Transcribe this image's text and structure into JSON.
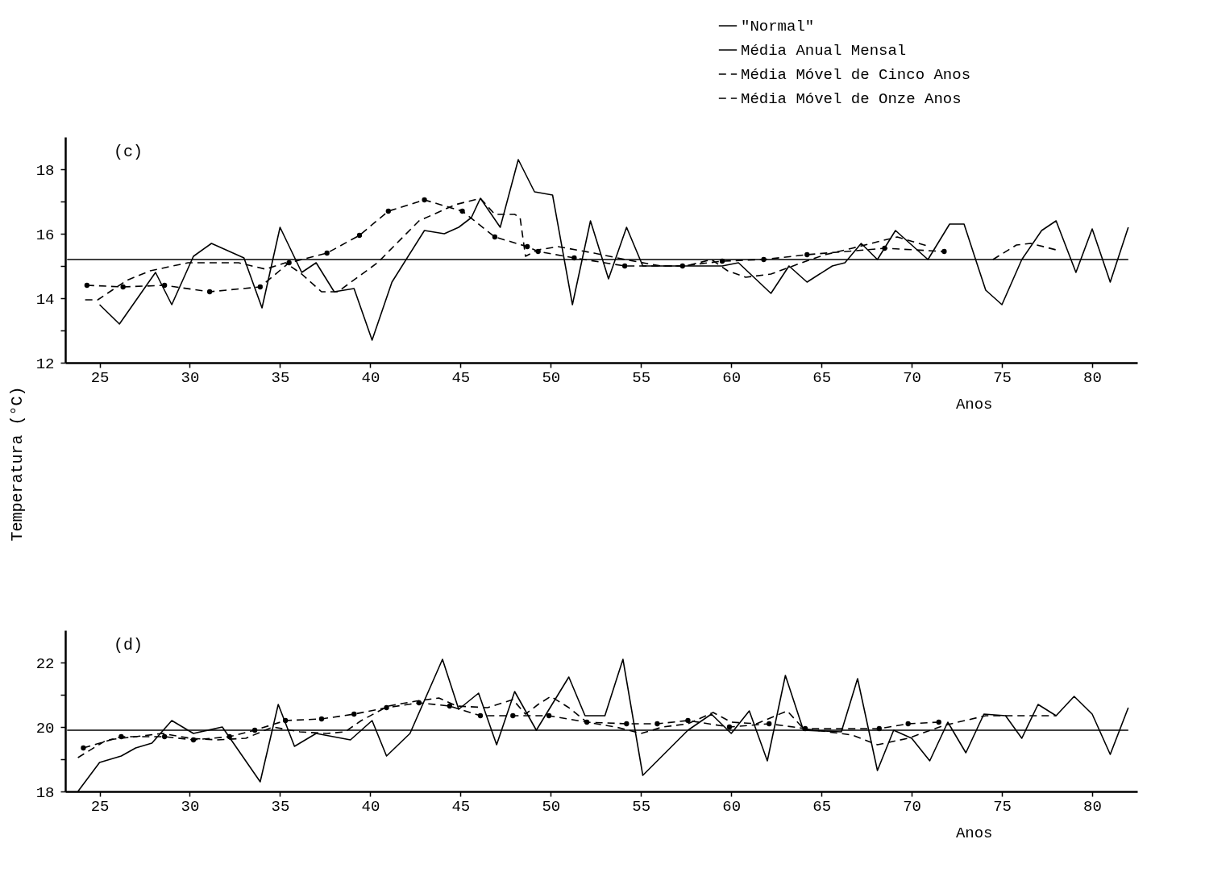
{
  "chart_data": [
    {
      "type": "line",
      "xlabel": "Anos",
      "ylabel": "Temperatura (°C)",
      "annotations": [
        "(c)"
      ],
      "xlim": [
        23.1,
        82.5
      ],
      "ylim": [
        12,
        19
      ],
      "xticks": [
        25,
        30,
        35,
        40,
        45,
        50,
        55,
        60,
        65,
        70,
        75,
        80
      ],
      "yticks": [
        {
          "value": 12,
          "label": "12"
        },
        {
          "value": 13,
          "label": null
        },
        {
          "value": 14,
          "label": "14"
        },
        {
          "value": 15,
          "label": null
        },
        {
          "value": 16,
          "label": "16"
        },
        {
          "value": 17,
          "label": null
        },
        {
          "value": 18,
          "label": "18"
        }
      ],
      "legend": "top right",
      "series": [
        {
          "name": "\"Normal\"",
          "color": "#000000",
          "line_style": "solid",
          "x": [
            23.2,
            82.0
          ],
          "values": [
            15.2,
            15.2
          ]
        },
        {
          "name": "Média Anual Mensal",
          "color": "#000000",
          "line_style": "solid",
          "x": [
            25.0,
            26.1,
            28.1,
            29.0,
            30.2,
            31.2,
            33.0,
            34.0,
            35.0,
            36.2,
            37.0,
            38.0,
            39.1,
            40.1,
            41.2,
            43.0,
            44.1,
            44.9,
            45.6,
            46.1,
            47.2,
            48.2,
            49.1,
            50.1,
            51.2,
            52.2,
            53.2,
            54.2,
            55.1,
            59.5,
            60.4,
            62.2,
            63.2,
            64.2,
            65.6,
            66.3,
            67.2,
            68.1,
            69.1,
            70.9,
            72.1,
            72.9,
            73.6,
            74.1,
            75.0,
            76.1,
            77.2,
            78.0,
            79.1,
            80.0,
            81.0,
            82.0
          ],
          "values": [
            13.8,
            13.2,
            14.8,
            13.8,
            15.3,
            15.7,
            15.25,
            13.7,
            16.2,
            14.8,
            15.1,
            14.2,
            14.3,
            12.7,
            14.5,
            16.1,
            16.0,
            16.2,
            16.5,
            17.1,
            16.2,
            18.3,
            17.3,
            17.2,
            13.8,
            16.4,
            14.6,
            16.2,
            15.0,
            15.0,
            15.1,
            14.15,
            15.0,
            14.5,
            15.0,
            15.1,
            15.7,
            15.2,
            16.1,
            15.2,
            16.3,
            16.3,
            15.1,
            14.25,
            13.8,
            15.2,
            16.1,
            16.4,
            14.8,
            16.15,
            14.5,
            16.2
          ]
        },
        {
          "name": "Média Móvel de Cinco Anos",
          "color": "#000000",
          "line_style": "dashed",
          "x": [
            24.2,
            24.9,
            26.5,
            27.8,
            29.9,
            32.7,
            34.2,
            35.3,
            36.2,
            37.3,
            38.2,
            40.4,
            42.7,
            44.7,
            46.1,
            46.9,
            48.0,
            48.3,
            48.6,
            49.3,
            50.4,
            52.4,
            54.1,
            56.1,
            57.5,
            58.9,
            59.8,
            60.8,
            62.2,
            63.9,
            65.2,
            66.7,
            68.1,
            69.2,
            71.0,
            73.0,
            74.5,
            75.8,
            76.6,
            78.0
          ],
          "values": [
            13.95,
            13.95,
            14.55,
            14.85,
            15.1,
            15.1,
            14.9,
            15.1,
            14.75,
            14.2,
            14.2,
            15.1,
            16.4,
            16.9,
            17.1,
            16.6,
            16.6,
            16.5,
            15.3,
            15.5,
            15.6,
            15.4,
            15.2,
            15.0,
            15.0,
            15.2,
            14.85,
            14.65,
            14.75,
            15.1,
            15.35,
            15.55,
            15.75,
            15.9,
            15.6,
            null,
            15.2,
            15.65,
            15.7,
            15.5
          ]
        },
        {
          "name": "Média Móvel de Onze Anos",
          "color": "#000000",
          "line_style": "dashed",
          "marker": "circle",
          "x": [
            24.3,
            26.3,
            28.6,
            31.1,
            33.9,
            35.5,
            37.6,
            39.4,
            41.0,
            43.0,
            45.1,
            46.9,
            48.7,
            49.3,
            51.3,
            54.1,
            57.3,
            59.5,
            61.8,
            64.2,
            68.5,
            71.8
          ],
          "values": [
            14.4,
            14.35,
            14.4,
            14.2,
            14.35,
            15.1,
            15.4,
            15.95,
            16.7,
            17.05,
            16.7,
            15.9,
            15.6,
            15.45,
            15.25,
            15.0,
            15.0,
            15.15,
            15.2,
            15.35,
            15.55,
            15.45
          ]
        }
      ]
    },
    {
      "type": "line",
      "xlabel": "Anos",
      "annotations": [
        "(d)"
      ],
      "xlim": [
        23.1,
        82.5
      ],
      "ylim": [
        18,
        23
      ],
      "xticks": [
        25,
        30,
        35,
        40,
        45,
        50,
        55,
        60,
        65,
        70,
        75,
        80
      ],
      "yticks": [
        {
          "value": 18,
          "label": "18"
        },
        {
          "value": 19,
          "label": null
        },
        {
          "value": 20,
          "label": "20"
        },
        {
          "value": 21,
          "label": null
        },
        {
          "value": 22,
          "label": "22"
        }
      ],
      "series": [
        {
          "color": "#000000",
          "line_style": "solid",
          "x": [
            23.2,
            82.0
          ],
          "values": [
            19.9,
            19.9
          ]
        },
        {
          "color": "#000000",
          "line_style": "solid",
          "x": [
            23.8,
            25.0,
            26.2,
            27.0,
            27.9,
            29.0,
            30.2,
            31.8,
            33.9,
            34.9,
            35.8,
            37.0,
            38.9,
            40.1,
            40.9,
            42.2,
            44.0,
            44.9,
            46.0,
            47.0,
            48.0,
            49.2,
            51.0,
            51.9,
            53.0,
            54.0,
            55.1,
            57.6,
            58.9,
            60.0,
            61.0,
            62.0,
            63.0,
            64.0,
            66.1,
            67.0,
            68.1,
            69.0,
            70.0,
            71.0,
            72.0,
            73.0,
            74.0,
            75.2,
            76.1,
            77.0,
            78.0,
            79.0,
            80.0,
            81.0,
            82.0
          ],
          "values": [
            18.0,
            18.9,
            19.1,
            19.35,
            19.5,
            20.2,
            19.8,
            20.0,
            18.3,
            20.7,
            19.4,
            19.8,
            19.6,
            20.2,
            19.1,
            19.8,
            22.1,
            20.55,
            21.05,
            19.45,
            21.1,
            19.9,
            21.55,
            20.35,
            20.35,
            22.1,
            18.5,
            19.9,
            20.4,
            19.8,
            20.5,
            18.95,
            21.6,
            19.9,
            19.85,
            21.5,
            18.65,
            19.9,
            19.65,
            18.95,
            20.15,
            19.2,
            20.4,
            20.35,
            19.65,
            20.7,
            20.35,
            20.95,
            20.4,
            19.15,
            20.6
          ]
        },
        {
          "color": "#000000",
          "line_style": "dashed",
          "x": [
            23.8,
            25.4,
            27.0,
            28.5,
            30.0,
            31.5,
            33.1,
            34.6,
            36.1,
            37.6,
            38.6,
            39.5,
            41.0,
            42.5,
            43.8,
            44.8,
            46.5,
            47.9,
            48.6,
            49.3,
            50.0,
            51.0,
            52.0,
            53.6,
            55.0,
            56.2,
            57.6,
            59.0,
            60.0,
            61.4,
            63.1,
            64.0,
            66.7,
            68.1,
            69.8,
            71.8,
            74.1,
            75.7,
            78.0
          ],
          "values": [
            19.05,
            19.6,
            19.7,
            19.8,
            19.65,
            19.6,
            19.65,
            20.0,
            19.85,
            19.8,
            19.85,
            20.2,
            20.65,
            20.8,
            20.9,
            20.65,
            20.6,
            20.85,
            20.4,
            20.7,
            20.95,
            20.6,
            20.15,
            20.0,
            19.8,
            20.0,
            20.1,
            20.45,
            20.15,
            20.1,
            20.5,
            19.95,
            19.75,
            19.45,
            19.65,
            20.05,
            20.35,
            20.35,
            20.35
          ]
        },
        {
          "color": "#000000",
          "line_style": "dashed",
          "marker": "circle",
          "x": [
            24.1,
            26.2,
            28.6,
            30.2,
            32.2,
            33.6,
            35.3,
            37.3,
            39.1,
            40.9,
            42.7,
            44.4,
            46.1,
            47.9,
            49.9,
            52.0,
            54.2,
            55.9,
            57.6,
            59.9,
            62.1,
            64.1,
            68.2,
            69.8,
            71.5
          ],
          "values": [
            19.35,
            19.7,
            19.7,
            19.6,
            19.7,
            19.9,
            20.2,
            20.25,
            20.4,
            20.6,
            20.75,
            20.65,
            20.35,
            20.35,
            20.35,
            20.15,
            20.1,
            20.1,
            20.2,
            20.0,
            20.1,
            19.95,
            19.95,
            20.1,
            20.15
          ]
        }
      ]
    }
  ]
}
